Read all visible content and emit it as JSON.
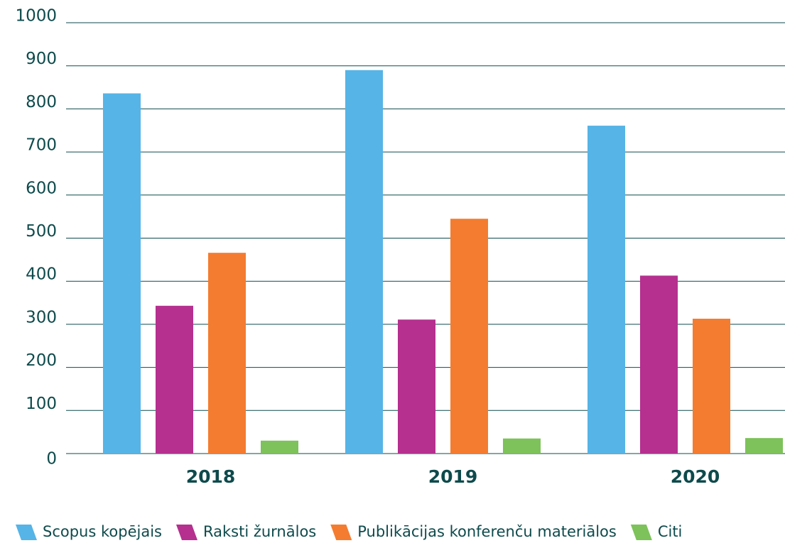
{
  "chart_data": {
    "type": "bar",
    "categories": [
      "2018",
      "2019",
      "2020"
    ],
    "series": [
      {
        "name": "Scopus kopējais",
        "color": "#56b4e6",
        "values": [
          836,
          890,
          761
        ]
      },
      {
        "name": "Raksti žurnālos",
        "color": "#b5308f",
        "values": [
          343,
          311,
          413
        ]
      },
      {
        "name": "Publikācijas konferenču materiālos",
        "color": "#f47c30",
        "values": [
          466,
          545,
          313
        ]
      },
      {
        "name": "Citi",
        "color": "#7dc25a",
        "values": [
          30,
          35,
          36
        ]
      }
    ],
    "ylim": [
      0,
      1000
    ],
    "yticks": [
      0,
      100,
      200,
      300,
      400,
      500,
      600,
      700,
      800,
      900,
      1000
    ],
    "grid": true,
    "legend": "bottom"
  }
}
